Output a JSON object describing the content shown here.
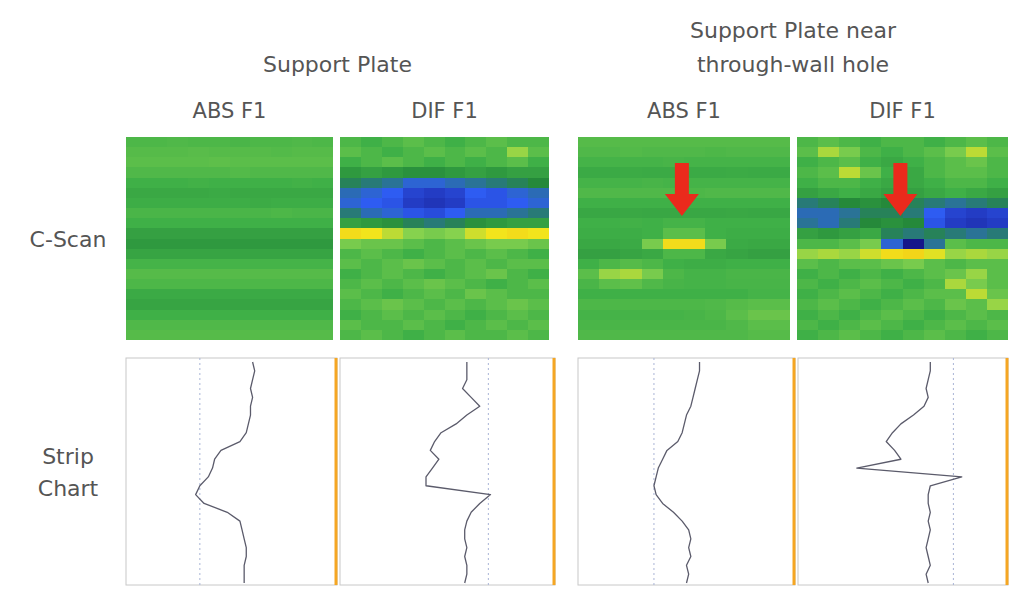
{
  "figure": {
    "groups": [
      {
        "title": [
          "Support Plate"
        ]
      },
      {
        "title": [
          "Support Plate near",
          "through-wall hole"
        ]
      }
    ],
    "row_labels": [
      [
        "C-Scan"
      ],
      [
        "Strip",
        "Chart"
      ]
    ]
  },
  "chart_data": [
    {
      "type": "heatmap",
      "title": "ABS F1",
      "zlim": [
        -1,
        1
      ],
      "tick_labels": false,
      "z": [
        [
          0.05,
          0.05,
          0.06,
          0.05,
          0.05,
          0.04,
          0.05,
          0.05,
          0.06,
          0.05
        ],
        [
          0.08,
          0.08,
          0.08,
          0.09,
          0.08,
          0.08,
          0.08,
          0.07,
          0.08,
          0.08
        ],
        [
          0.1,
          0.1,
          0.1,
          0.1,
          0.11,
          0.1,
          0.1,
          0.1,
          0.1,
          0.1
        ],
        [
          0.06,
          0.06,
          0.06,
          0.06,
          0.06,
          0.07,
          0.06,
          0.06,
          0.06,
          0.06
        ],
        [
          0,
          0,
          0,
          0.01,
          0,
          0,
          0,
          0,
          0.01,
          0
        ],
        [
          -0.05,
          -0.05,
          -0.05,
          -0.05,
          -0.04,
          -0.05,
          -0.05,
          -0.05,
          -0.05,
          -0.05
        ],
        [
          -0.02,
          -0.02,
          -0.02,
          -0.02,
          -0.02,
          -0.02,
          -0.03,
          -0.02,
          -0.02,
          -0.02
        ],
        [
          0.04,
          0.04,
          0.04,
          0.04,
          0.04,
          0.04,
          0.04,
          0.05,
          0.04,
          0.04
        ],
        [
          0,
          0,
          0,
          0,
          0,
          0,
          0,
          0,
          0,
          0
        ],
        [
          -0.1,
          -0.1,
          -0.1,
          -0.1,
          -0.1,
          -0.1,
          -0.1,
          -0.1,
          -0.1,
          -0.1
        ],
        [
          -0.15,
          -0.15,
          -0.15,
          -0.15,
          -0.15,
          -0.15,
          -0.15,
          -0.15,
          -0.15,
          -0.15
        ],
        [
          -0.08,
          -0.08,
          -0.08,
          -0.08,
          -0.08,
          -0.08,
          -0.08,
          -0.08,
          -0.08,
          -0.08
        ],
        [
          0.02,
          0.02,
          0.02,
          0.02,
          0.02,
          0.02,
          0.02,
          0.02,
          0.02,
          0.02
        ],
        [
          0.08,
          0.08,
          0.08,
          0.08,
          0.08,
          0.08,
          0.08,
          0.08,
          0.08,
          0.08
        ],
        [
          0.05,
          0.05,
          0.05,
          0.05,
          0.05,
          0.05,
          0.05,
          0.05,
          0.05,
          0.05
        ],
        [
          -0.04,
          -0.04,
          -0.04,
          -0.04,
          -0.04,
          -0.04,
          -0.04,
          -0.04,
          -0.04,
          -0.04
        ],
        [
          -0.08,
          -0.08,
          -0.08,
          -0.08,
          -0.08,
          -0.08,
          -0.08,
          -0.08,
          -0.08,
          -0.08
        ],
        [
          0,
          0,
          0,
          0,
          0,
          0,
          0,
          0,
          0,
          0
        ],
        [
          0.06,
          0.06,
          0.06,
          0.06,
          0.06,
          0.06,
          0.06,
          0.06,
          0.06,
          0.06
        ],
        [
          0.08,
          0.08,
          0.08,
          0.08,
          0.08,
          0.08,
          0.08,
          0.08,
          0.08,
          0.08
        ]
      ]
    },
    {
      "type": "heatmap",
      "title": "DIF F1",
      "zlim": [
        -1,
        1
      ],
      "tick_labels": false,
      "z": [
        [
          0.05,
          0,
          0.05,
          0.1,
          0.05,
          0,
          0.05,
          0.1,
          0.05,
          0.05
        ],
        [
          0.1,
          0.05,
          0,
          0.05,
          0.1,
          0.05,
          0.1,
          0.05,
          0.3,
          0.1
        ],
        [
          0,
          0.05,
          0.1,
          0.05,
          0,
          0.05,
          0,
          0.05,
          0.1,
          0
        ],
        [
          -0.15,
          -0.1,
          -0.15,
          -0.2,
          -0.2,
          -0.15,
          -0.1,
          -0.15,
          -0.1,
          -0.1
        ],
        [
          -0.3,
          -0.35,
          -0.4,
          -0.5,
          -0.5,
          -0.45,
          -0.4,
          -0.35,
          -0.3,
          -0.25
        ],
        [
          -0.45,
          -0.5,
          -0.55,
          -0.7,
          -0.75,
          -0.7,
          -0.55,
          -0.6,
          -0.5,
          -0.45
        ],
        [
          -0.5,
          -0.55,
          -0.6,
          -0.75,
          -0.8,
          -0.75,
          -0.6,
          -0.6,
          -0.55,
          -0.5
        ],
        [
          -0.35,
          -0.45,
          -0.5,
          -0.6,
          -0.65,
          -0.55,
          -0.45,
          -0.45,
          -0.4,
          -0.35
        ],
        [
          -0.1,
          -0.15,
          -0.2,
          -0.3,
          -0.35,
          -0.3,
          -0.2,
          -0.15,
          -0.1,
          -0.1
        ],
        [
          0.6,
          0.55,
          0.4,
          0.25,
          0.2,
          0.25,
          0.45,
          0.55,
          0.6,
          0.55
        ],
        [
          0.2,
          0.15,
          0.15,
          0.1,
          0.05,
          0.1,
          0.15,
          0.2,
          0.2,
          0.15
        ],
        [
          0.05,
          0.1,
          0.05,
          0,
          0.05,
          0.1,
          0.05,
          0.1,
          0.05,
          0
        ],
        [
          0.1,
          0.05,
          0.1,
          0.15,
          0.1,
          0.05,
          0.1,
          0.05,
          0.1,
          0.1
        ],
        [
          0,
          0.05,
          0.1,
          0.05,
          0,
          0.05,
          0.1,
          0.15,
          0.05,
          0
        ],
        [
          0.05,
          0.1,
          0.05,
          0.1,
          0.15,
          0.1,
          0.05,
          0,
          0.05,
          0.1
        ],
        [
          0.1,
          0.05,
          0,
          0.05,
          0.1,
          0.05,
          0.15,
          0.1,
          0.05,
          0.05
        ],
        [
          0.05,
          0.1,
          0.15,
          0.1,
          0.05,
          0.1,
          0.05,
          0.1,
          0.15,
          0.1
        ],
        [
          0,
          0.05,
          0.1,
          0.05,
          0.1,
          0.05,
          0,
          0.05,
          0.1,
          0.05
        ],
        [
          0.1,
          0.05,
          0.05,
          0.1,
          0.05,
          0,
          0.05,
          0.1,
          0.05,
          0.1
        ],
        [
          0.05,
          0.1,
          0.05,
          0,
          0.05,
          0.1,
          0.05,
          0.05,
          0.1,
          0.05
        ]
      ]
    },
    {
      "type": "heatmap",
      "title": "ABS F1",
      "zlim": [
        -1,
        1
      ],
      "tick_labels": false,
      "z": [
        [
          0.08,
          0.08,
          0.08,
          0.08,
          0.08,
          0.08,
          0.08,
          0.08,
          0.08,
          0.08
        ],
        [
          0.06,
          0.06,
          0.07,
          0.06,
          0.06,
          0.06,
          0.05,
          0.06,
          0.06,
          0.06
        ],
        [
          0.02,
          0.02,
          0.02,
          0.02,
          0.03,
          0.02,
          0.02,
          0.02,
          0.02,
          0.02
        ],
        [
          -0.04,
          -0.04,
          -0.03,
          -0.04,
          -0.04,
          -0.04,
          -0.04,
          -0.03,
          -0.04,
          -0.04
        ],
        [
          0.02,
          0.02,
          0.02,
          0.03,
          0.02,
          0.02,
          0.02,
          0.02,
          0.02,
          0.02
        ],
        [
          0.06,
          0.06,
          0.06,
          0.06,
          0.06,
          0.05,
          0.06,
          0.06,
          0.06,
          0.06
        ],
        [
          0,
          0,
          0,
          0,
          0,
          0,
          0,
          0,
          0,
          0
        ],
        [
          -0.06,
          -0.06,
          -0.05,
          -0.06,
          -0.06,
          -0.06,
          -0.06,
          -0.05,
          -0.06,
          -0.06
        ],
        [
          0,
          0,
          0.01,
          0,
          0.02,
          0.02,
          0,
          0,
          0,
          0
        ],
        [
          -0.02,
          -0.02,
          -0.02,
          0,
          0.1,
          0.1,
          0,
          -0.02,
          -0.02,
          -0.02
        ],
        [
          -0.05,
          -0.05,
          -0.04,
          0.2,
          0.6,
          0.6,
          0.2,
          -0.04,
          -0.05,
          -0.05
        ],
        [
          -0.1,
          -0.1,
          -0.08,
          -0.05,
          0.05,
          0.05,
          -0.05,
          -0.08,
          -0.1,
          -0.1
        ],
        [
          0,
          0.05,
          0.08,
          0.05,
          0,
          -0.02,
          -0.02,
          0,
          0,
          0
        ],
        [
          0.1,
          0.3,
          0.35,
          0.2,
          0.05,
          0.02,
          0.02,
          0.04,
          0.04,
          0.04
        ],
        [
          0.04,
          0.1,
          0.12,
          0.06,
          0.03,
          0.02,
          0.02,
          0.03,
          0.03,
          0.03
        ],
        [
          0,
          0,
          0,
          0,
          0,
          0,
          0,
          0,
          0.02,
          0.02
        ],
        [
          0.05,
          0.05,
          0.05,
          0.05,
          0.05,
          0.05,
          0.06,
          0.08,
          0.1,
          0.1
        ],
        [
          0.02,
          0.02,
          0.02,
          0.02,
          0.02,
          0.03,
          0.05,
          0.1,
          0.15,
          0.15
        ],
        [
          0.04,
          0.04,
          0.04,
          0.04,
          0.04,
          0.04,
          0.04,
          0.06,
          0.1,
          0.1
        ],
        [
          0.06,
          0.06,
          0.06,
          0.06,
          0.06,
          0.06,
          0.06,
          0.06,
          0.08,
          0.08
        ]
      ]
    },
    {
      "type": "heatmap",
      "title": "DIF F1",
      "zlim": [
        -1,
        1
      ],
      "tick_labels": false,
      "z": [
        [
          0.05,
          0.1,
          0.05,
          0,
          0.05,
          0.05,
          0,
          0.05,
          0.1,
          0.05
        ],
        [
          0.1,
          0.35,
          0.2,
          0.05,
          0,
          0.05,
          0.1,
          0.2,
          0.4,
          0.1
        ],
        [
          0,
          0.05,
          0.1,
          0,
          -0.05,
          0,
          0.05,
          0.1,
          0.15,
          0.05
        ],
        [
          0.05,
          0.1,
          0.4,
          0.15,
          0,
          -0.05,
          0.05,
          0.1,
          0.1,
          0.05
        ],
        [
          0,
          0.05,
          0.05,
          0,
          -0.05,
          -0.05,
          0,
          0.05,
          0.05,
          0
        ],
        [
          -0.1,
          -0.05,
          0,
          -0.05,
          -0.1,
          -0.1,
          -0.05,
          0,
          -0.05,
          -0.1
        ],
        [
          -0.35,
          -0.3,
          -0.25,
          -0.2,
          -0.25,
          -0.3,
          -0.35,
          -0.4,
          -0.35,
          -0.3
        ],
        [
          -0.45,
          -0.45,
          -0.4,
          -0.3,
          -0.3,
          -0.35,
          -0.55,
          -0.7,
          -0.75,
          -0.7
        ],
        [
          -0.4,
          -0.45,
          -0.35,
          -0.25,
          -0.2,
          -0.25,
          -0.6,
          -0.75,
          -0.8,
          -0.75
        ],
        [
          -0.1,
          -0.15,
          -0.1,
          -0.05,
          -0.3,
          -0.35,
          -0.3,
          -0.35,
          -0.4,
          -0.35
        ],
        [
          0.05,
          0.05,
          0.1,
          0.2,
          -0.5,
          -1,
          -0.4,
          0.1,
          0.05,
          0.05
        ],
        [
          0.3,
          0.35,
          0.3,
          0.45,
          0.6,
          0.65,
          0.5,
          0.3,
          0.35,
          0.3
        ],
        [
          0.1,
          0.05,
          0.1,
          0.1,
          0.15,
          0.2,
          0.1,
          0.05,
          0.1,
          0.1
        ],
        [
          0,
          0.05,
          0,
          0.05,
          0,
          0.05,
          0.1,
          0.15,
          0.3,
          0.1
        ],
        [
          0.05,
          0,
          0.05,
          0.1,
          0.05,
          0,
          0.05,
          0.35,
          0.2,
          0.1
        ],
        [
          0,
          0.05,
          0.1,
          0.05,
          0,
          0.05,
          0.1,
          0.1,
          0.4,
          0.15
        ],
        [
          0.05,
          0.1,
          0.05,
          0,
          0.05,
          0.1,
          0.05,
          0.15,
          0.1,
          0.3
        ],
        [
          0,
          0.05,
          0,
          0.05,
          0.1,
          0.05,
          0,
          0.05,
          0.1,
          0.05
        ],
        [
          0.05,
          0,
          0.05,
          0.1,
          0.05,
          0,
          0.05,
          0.1,
          0.05,
          0.1
        ],
        [
          0,
          0.05,
          0.1,
          0.05,
          0,
          0.05,
          0.1,
          0.05,
          0,
          0.05
        ]
      ]
    },
    {
      "type": "line",
      "orientation": "horizontal",
      "color": "#5b5b6b",
      "grid": true,
      "tick_labels": false,
      "xlim": [
        0,
        100
      ],
      "ylim": [
        0,
        100
      ],
      "yticks": [
        35
      ],
      "x": [
        0,
        4,
        8,
        12,
        16,
        20,
        24,
        28,
        32,
        36,
        40,
        44,
        48,
        52,
        56,
        60,
        64,
        68,
        72,
        76,
        80,
        84,
        88,
        92,
        96,
        100
      ],
      "values": [
        60,
        61,
        60,
        59,
        60,
        59,
        59,
        58,
        57,
        54,
        45,
        42,
        41,
        39,
        35,
        33,
        37,
        48,
        54,
        55,
        56,
        57,
        57,
        56,
        56,
        56
      ]
    },
    {
      "type": "line",
      "orientation": "horizontal",
      "color": "#5b5b6b",
      "grid": true,
      "tick_labels": false,
      "xlim": [
        0,
        100
      ],
      "ylim": [
        0,
        100
      ],
      "yticks": [
        69
      ],
      "x": [
        0,
        4,
        8,
        12,
        16,
        20,
        24,
        28,
        32,
        36,
        40,
        44,
        48,
        52,
        56,
        60,
        64,
        68,
        72,
        76,
        80,
        84,
        88,
        92,
        96,
        100
      ],
      "values": [
        59,
        59,
        59,
        57,
        61,
        65,
        59,
        54,
        47,
        44,
        42,
        46,
        43,
        40,
        40,
        70,
        65,
        61,
        59,
        58,
        58,
        59,
        58,
        59,
        59,
        58
      ]
    },
    {
      "type": "line",
      "orientation": "horizontal",
      "color": "#5b5b6b",
      "grid": true,
      "tick_labels": false,
      "xlim": [
        0,
        100
      ],
      "ylim": [
        0,
        100
      ],
      "yticks": [
        35
      ],
      "x": [
        0,
        4,
        8,
        12,
        16,
        20,
        24,
        28,
        32,
        36,
        40,
        44,
        48,
        52,
        56,
        60,
        64,
        68,
        72,
        76,
        80,
        84,
        88,
        92,
        96,
        100
      ],
      "values": [
        56,
        56,
        55,
        54,
        53,
        52,
        50,
        49,
        48,
        46,
        41,
        39,
        37,
        36,
        35,
        36,
        39,
        44,
        48,
        51,
        52,
        51,
        52,
        50,
        51,
        50
      ]
    },
    {
      "type": "line",
      "orientation": "horizontal",
      "color": "#5b5b6b",
      "grid": true,
      "tick_labels": false,
      "xlim": [
        0,
        100
      ],
      "ylim": [
        0,
        100
      ],
      "yticks": [
        74
      ],
      "x": [
        0,
        4,
        8,
        12,
        16,
        20,
        24,
        28,
        32,
        36,
        40,
        44,
        48,
        52,
        56,
        60,
        64,
        68,
        72,
        76,
        80,
        84,
        88,
        92,
        96,
        100
      ],
      "values": [
        63,
        63,
        62,
        61,
        62,
        60,
        55,
        49,
        45,
        42,
        46,
        49,
        28,
        78,
        63,
        62,
        62,
        63,
        62,
        63,
        62,
        61,
        62,
        63,
        61,
        62
      ]
    }
  ]
}
